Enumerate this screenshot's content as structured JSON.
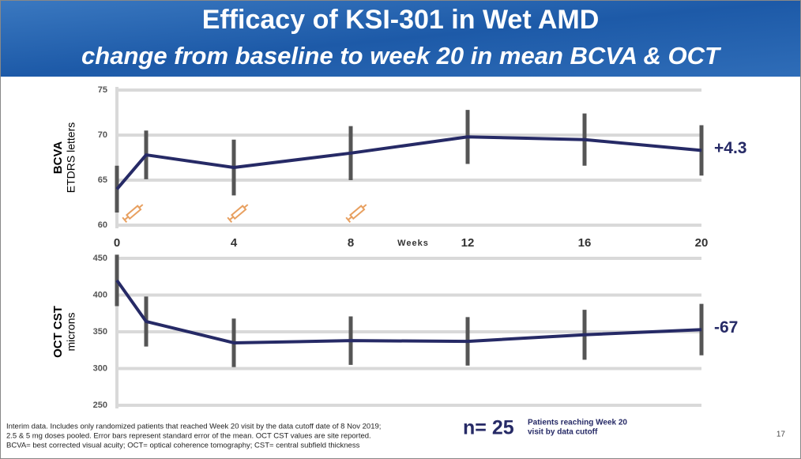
{
  "header": {
    "title": "Efficacy of KSI-301 in Wet AMD",
    "subtitle": "change from baseline to week 20 in mean BCVA & OCT"
  },
  "chart_data": [
    {
      "type": "line",
      "y_label": "BCVA",
      "y_label_sub": "ETDRS letters",
      "x_label": "Weeks",
      "x": [
        0,
        1,
        4,
        8,
        12,
        16,
        20
      ],
      "xlim": [
        0,
        20
      ],
      "xticks": [
        0,
        4,
        8,
        12,
        16,
        20
      ],
      "ylim": [
        60,
        75
      ],
      "yticks": [
        60,
        65,
        70,
        75
      ],
      "grid": true,
      "series": [
        {
          "name": "BCVA",
          "color": "#262a66",
          "values": [
            64.0,
            67.8,
            66.4,
            68.0,
            69.8,
            69.5,
            68.3
          ],
          "errors": [
            2.6,
            2.7,
            3.1,
            3.0,
            3.0,
            2.9,
            2.8
          ]
        }
      ],
      "annotation": "+4.3"
    },
    {
      "type": "line",
      "y_label": "OCT CST",
      "y_label_sub": "microns",
      "x": [
        0,
        1,
        4,
        8,
        12,
        16,
        20
      ],
      "xlim": [
        0,
        20
      ],
      "ylim": [
        250,
        450
      ],
      "yticks": [
        250,
        300,
        350,
        400,
        450
      ],
      "grid": true,
      "series": [
        {
          "name": "OCT CST",
          "color": "#262a66",
          "values": [
            420,
            364,
            335,
            338,
            337,
            346,
            353
          ],
          "errors": [
            35,
            34,
            33,
            33,
            33,
            34,
            35
          ]
        }
      ],
      "annotation": "-67"
    }
  ],
  "footnote": [
    "Interim data. Includes only randomized patients that reached Week 20 visit by the data cutoff date of 8 Nov 2019;",
    "2.5 & 5 mg doses pooled. Error bars represent standard error of the mean. OCT CST values are site reported.",
    "BCVA= best corrected visual acuity; OCT= optical coherence tomography; CST= central subfield thickness"
  ],
  "n_label": "n= 25",
  "n_note": [
    "Patients reaching Week 20",
    "visit by data cutoff"
  ],
  "page_number": "17"
}
